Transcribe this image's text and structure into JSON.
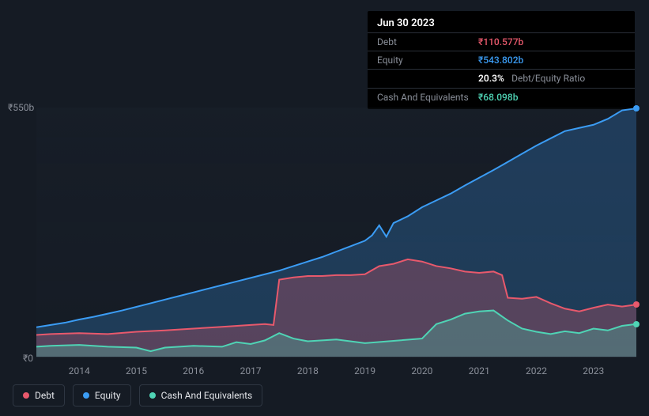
{
  "tooltip": {
    "date": "Jun 30 2023",
    "rows": [
      {
        "label": "Debt",
        "value": "₹110.577b",
        "color": "#e8596c"
      },
      {
        "label": "Equity",
        "value": "₹543.802b",
        "color": "#3b9cf4"
      },
      {
        "label": "",
        "value": "20.3%",
        "secondary": "Debt/Equity Ratio",
        "color": "#ffffff"
      },
      {
        "label": "Cash And Equivalents",
        "value": "₹68.098b",
        "color": "#4fd4b5"
      }
    ]
  },
  "chart": {
    "type": "area",
    "background_color": "#151b24",
    "grid_color": "#232b38",
    "ylim": [
      0,
      550
    ],
    "y_ticks": [
      {
        "pos": 0,
        "label": "₹0"
      },
      {
        "pos": 550,
        "label": "₹550b"
      }
    ],
    "x_years": [
      "2014",
      "2015",
      "2016",
      "2017",
      "2018",
      "2019",
      "2020",
      "2021",
      "2022",
      "2023"
    ],
    "x_range": [
      2013.25,
      2023.75
    ],
    "series": {
      "equity": {
        "color": "#3b9cf4",
        "fill": "rgba(59,156,244,0.25)",
        "line_width": 2,
        "data": [
          [
            2013.25,
            65
          ],
          [
            2013.5,
            70
          ],
          [
            2013.75,
            75
          ],
          [
            2014,
            82
          ],
          [
            2014.25,
            88
          ],
          [
            2014.5,
            95
          ],
          [
            2014.75,
            102
          ],
          [
            2015,
            110
          ],
          [
            2015.25,
            118
          ],
          [
            2015.5,
            126
          ],
          [
            2015.75,
            134
          ],
          [
            2016,
            142
          ],
          [
            2016.25,
            150
          ],
          [
            2016.5,
            158
          ],
          [
            2016.75,
            166
          ],
          [
            2017,
            174
          ],
          [
            2017.25,
            182
          ],
          [
            2017.5,
            190
          ],
          [
            2017.75,
            200
          ],
          [
            2018,
            210
          ],
          [
            2018.25,
            220
          ],
          [
            2018.5,
            232
          ],
          [
            2018.75,
            244
          ],
          [
            2019,
            256
          ],
          [
            2019.125,
            268
          ],
          [
            2019.25,
            290
          ],
          [
            2019.375,
            265
          ],
          [
            2019.5,
            295
          ],
          [
            2019.75,
            310
          ],
          [
            2020,
            330
          ],
          [
            2020.25,
            345
          ],
          [
            2020.5,
            360
          ],
          [
            2020.75,
            378
          ],
          [
            2021,
            395
          ],
          [
            2021.25,
            412
          ],
          [
            2021.5,
            430
          ],
          [
            2021.75,
            448
          ],
          [
            2022,
            466
          ],
          [
            2022.25,
            482
          ],
          [
            2022.5,
            498
          ],
          [
            2022.75,
            505
          ],
          [
            2023,
            512
          ],
          [
            2023.25,
            525
          ],
          [
            2023.5,
            543.8
          ],
          [
            2023.75,
            548
          ]
        ]
      },
      "debt": {
        "color": "#e8596c",
        "fill": "rgba(232,89,108,0.28)",
        "line_width": 2,
        "data": [
          [
            2013.25,
            48
          ],
          [
            2013.5,
            50
          ],
          [
            2014,
            52
          ],
          [
            2014.5,
            50
          ],
          [
            2015,
            55
          ],
          [
            2015.5,
            58
          ],
          [
            2016,
            62
          ],
          [
            2016.5,
            66
          ],
          [
            2017,
            70
          ],
          [
            2017.25,
            72
          ],
          [
            2017.4,
            70
          ],
          [
            2017.5,
            170
          ],
          [
            2017.75,
            175
          ],
          [
            2018,
            178
          ],
          [
            2018.25,
            178
          ],
          [
            2018.5,
            180
          ],
          [
            2018.75,
            180
          ],
          [
            2019,
            182
          ],
          [
            2019.25,
            200
          ],
          [
            2019.5,
            205
          ],
          [
            2019.75,
            215
          ],
          [
            2020,
            210
          ],
          [
            2020.25,
            200
          ],
          [
            2020.5,
            195
          ],
          [
            2020.75,
            188
          ],
          [
            2021,
            185
          ],
          [
            2021.25,
            188
          ],
          [
            2021.4,
            180
          ],
          [
            2021.5,
            130
          ],
          [
            2021.75,
            128
          ],
          [
            2022,
            132
          ],
          [
            2022.25,
            118
          ],
          [
            2022.5,
            106
          ],
          [
            2022.75,
            100
          ],
          [
            2023,
            108
          ],
          [
            2023.25,
            115
          ],
          [
            2023.5,
            110.6
          ],
          [
            2023.75,
            115
          ]
        ]
      },
      "cash": {
        "color": "#4fd4b5",
        "fill": "rgba(79,212,181,0.28)",
        "line_width": 2,
        "data": [
          [
            2013.25,
            22
          ],
          [
            2013.5,
            24
          ],
          [
            2014,
            26
          ],
          [
            2014.5,
            22
          ],
          [
            2015,
            20
          ],
          [
            2015.25,
            12
          ],
          [
            2015.5,
            20
          ],
          [
            2016,
            24
          ],
          [
            2016.5,
            22
          ],
          [
            2016.75,
            32
          ],
          [
            2017,
            28
          ],
          [
            2017.25,
            36
          ],
          [
            2017.5,
            52
          ],
          [
            2017.75,
            40
          ],
          [
            2018,
            34
          ],
          [
            2018.5,
            38
          ],
          [
            2019,
            30
          ],
          [
            2019.5,
            35
          ],
          [
            2020,
            40
          ],
          [
            2020.25,
            72
          ],
          [
            2020.5,
            82
          ],
          [
            2020.75,
            95
          ],
          [
            2021,
            100
          ],
          [
            2021.25,
            102
          ],
          [
            2021.5,
            80
          ],
          [
            2021.75,
            62
          ],
          [
            2022,
            55
          ],
          [
            2022.25,
            50
          ],
          [
            2022.5,
            56
          ],
          [
            2022.75,
            52
          ],
          [
            2023,
            62
          ],
          [
            2023.25,
            58
          ],
          [
            2023.5,
            68.1
          ],
          [
            2023.75,
            72
          ]
        ]
      }
    },
    "marker_x": 2023.75,
    "markers": [
      {
        "series": "equity",
        "y": 548,
        "color": "#3b9cf4"
      },
      {
        "series": "debt",
        "y": 115,
        "color": "#e8596c"
      },
      {
        "series": "cash",
        "y": 72,
        "color": "#4fd4b5"
      }
    ]
  },
  "legend": [
    {
      "label": "Debt",
      "color": "#e8596c",
      "key": "debt"
    },
    {
      "label": "Equity",
      "color": "#3b9cf4",
      "key": "equity"
    },
    {
      "label": "Cash And Equivalents",
      "color": "#4fd4b5",
      "key": "cash"
    }
  ]
}
